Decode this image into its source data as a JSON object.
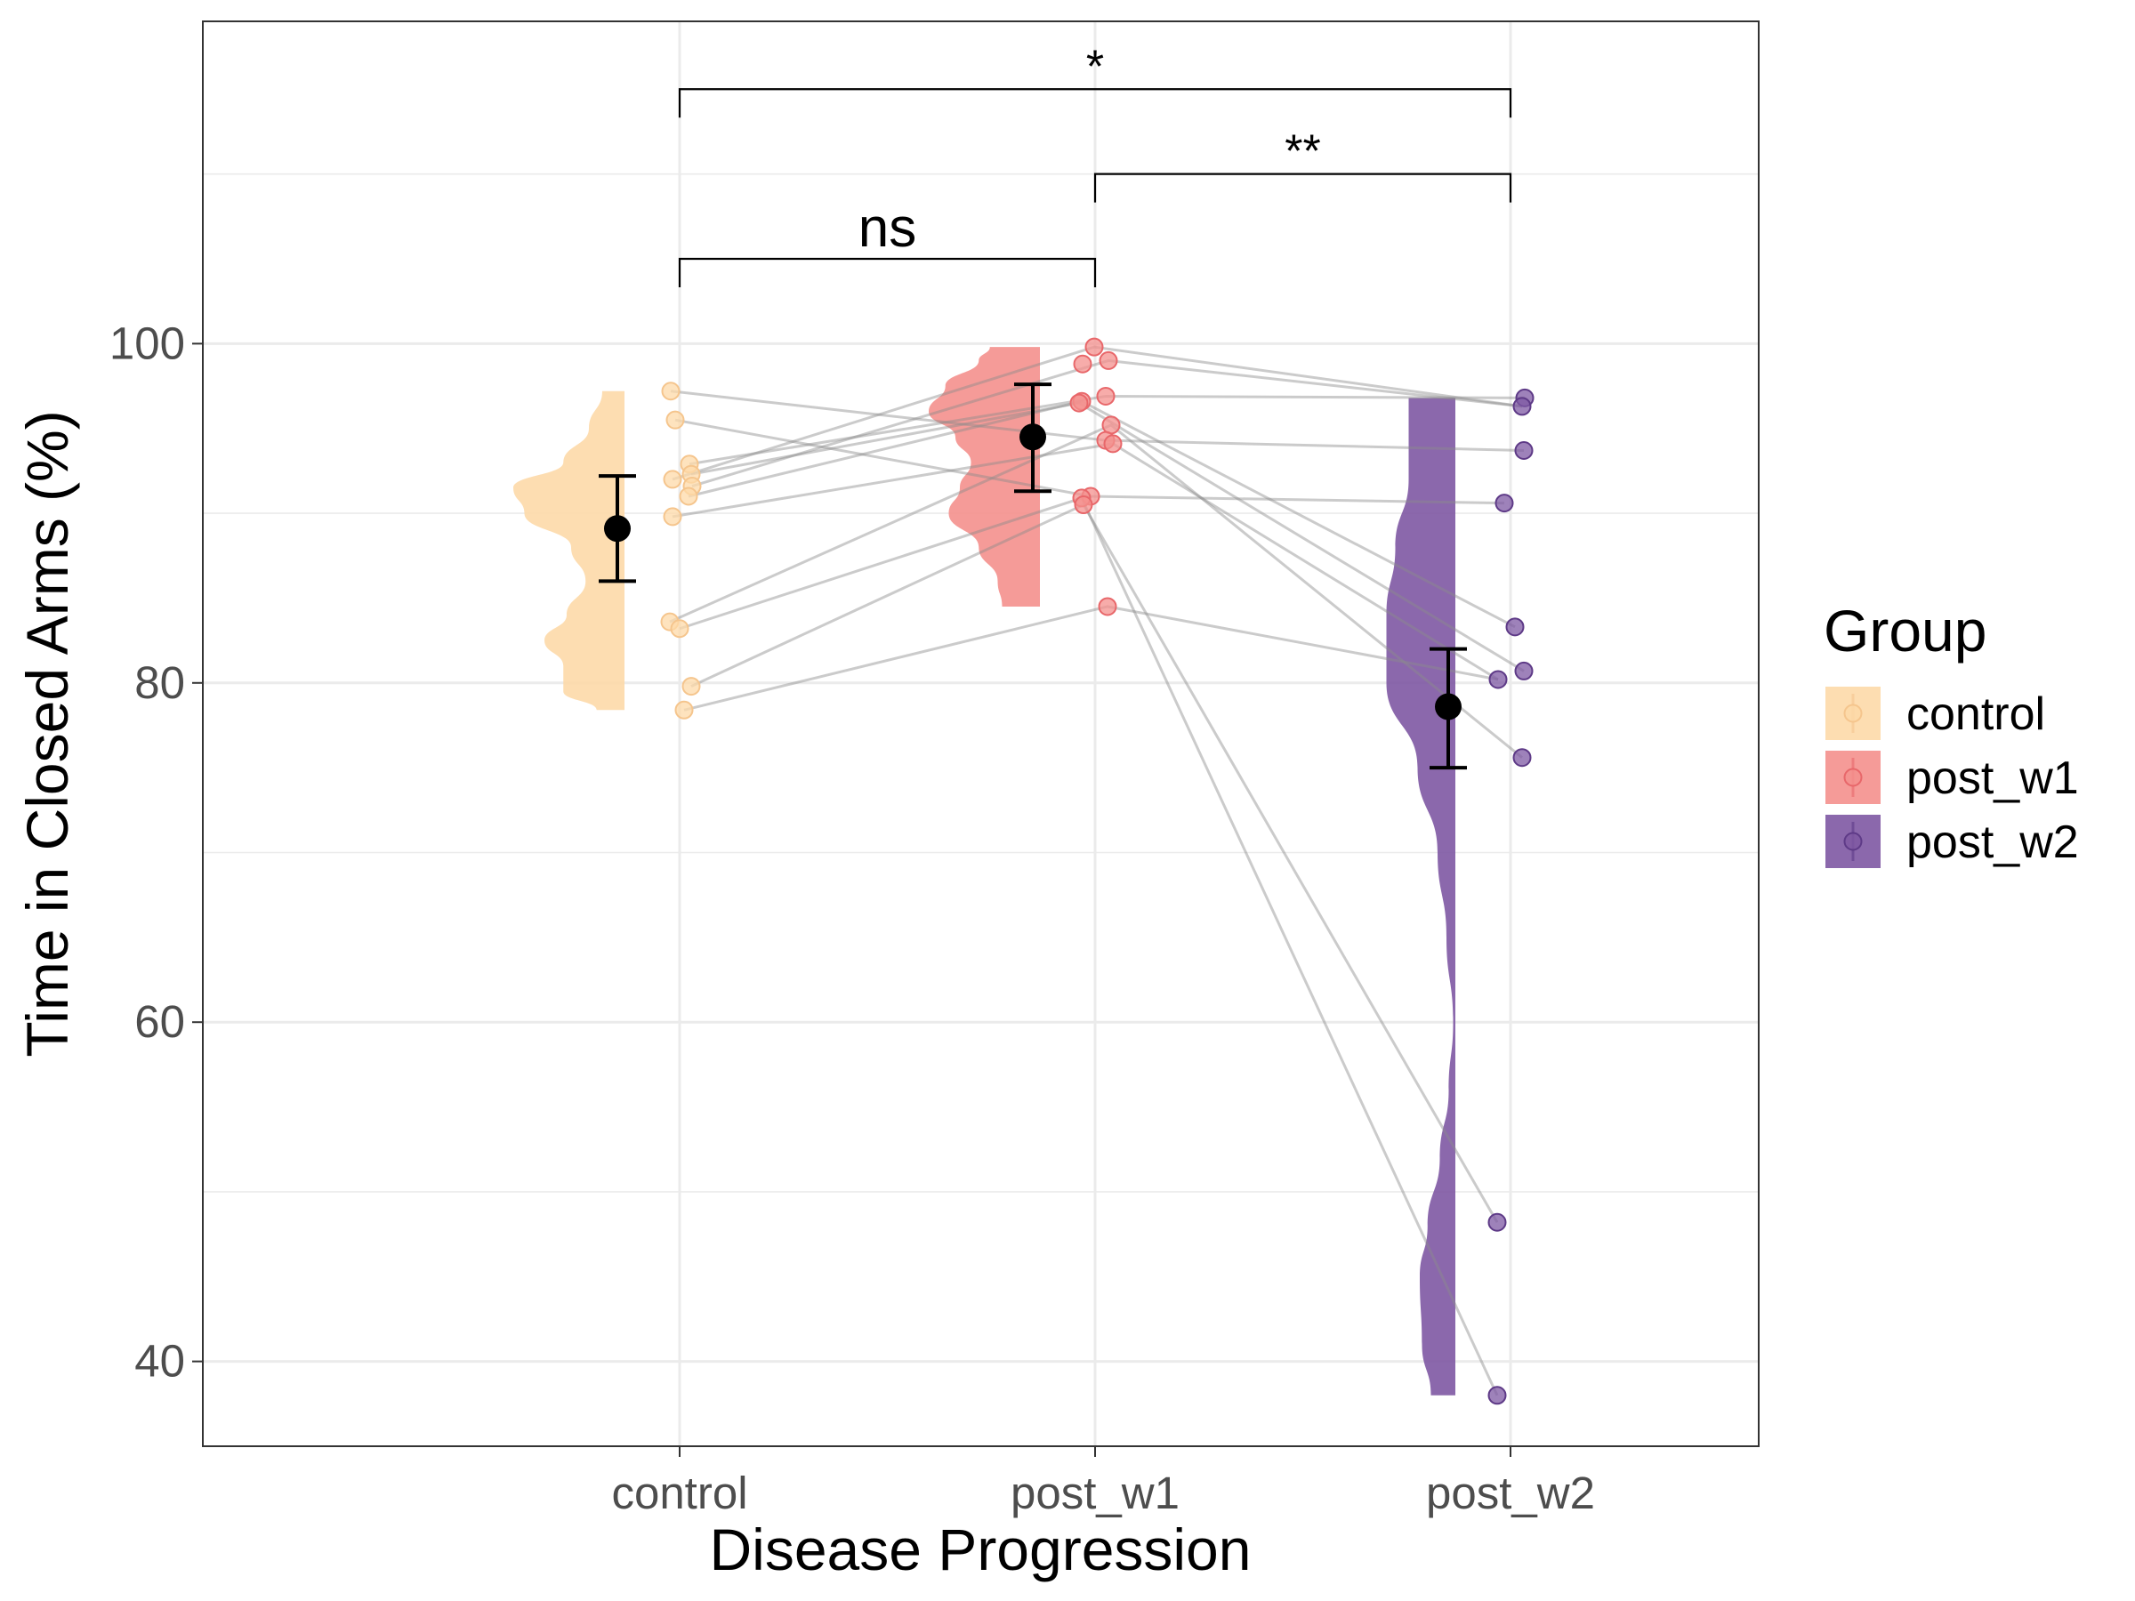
{
  "chart_data": {
    "type": "raincloud",
    "xlabel": "Disease Progression",
    "ylabel": "Time in Closed Arms (%)",
    "categories": [
      "control",
      "post_w1",
      "post_w2"
    ],
    "ylim": [
      35,
      119
    ],
    "yticks": [
      40,
      60,
      80,
      100
    ],
    "grid": true,
    "legend": {
      "title": "Group",
      "position": "right",
      "entries": [
        "control",
        "post_w1",
        "post_w2"
      ]
    },
    "colors": {
      "control": "#fdd9a8",
      "post_w1": "#f4908d",
      "post_w2": "#7e58a3"
    },
    "series": [
      {
        "name": "control",
        "mean": 89.1,
        "error_low": 86.0,
        "error_high": 92.2,
        "points": [
          97.2,
          95.5,
          92.9,
          92.3,
          92.0,
          91.6,
          91.0,
          89.8,
          83.6,
          83.2,
          79.8,
          78.4
        ],
        "density": [
          [
            78.4,
            0.25
          ],
          [
            79.5,
            0.55
          ],
          [
            81,
            0.55
          ],
          [
            82.5,
            0.72
          ],
          [
            84,
            0.52
          ],
          [
            86,
            0.35
          ],
          [
            88,
            0.48
          ],
          [
            90,
            0.9
          ],
          [
            91.5,
            1.0
          ],
          [
            93,
            0.55
          ],
          [
            95,
            0.32
          ],
          [
            97.2,
            0.2
          ]
        ]
      },
      {
        "name": "post_w1",
        "mean": 94.5,
        "error_low": 91.3,
        "error_high": 97.6,
        "points": [
          99.8,
          99.0,
          98.8,
          96.9,
          96.6,
          96.5,
          95.2,
          94.3,
          94.1,
          91.0,
          90.9,
          90.5,
          84.5
        ],
        "density": [
          [
            84.5,
            0.34
          ],
          [
            86,
            0.38
          ],
          [
            88,
            0.55
          ],
          [
            90,
            0.82
          ],
          [
            91.5,
            0.72
          ],
          [
            93,
            0.62
          ],
          [
            94.5,
            0.76
          ],
          [
            96,
            1.0
          ],
          [
            97.5,
            0.85
          ],
          [
            99,
            0.55
          ],
          [
            99.8,
            0.45
          ]
        ]
      },
      {
        "name": "post_w2",
        "mean": 78.6,
        "error_low": 75.0,
        "error_high": 82.0,
        "points": [
          96.8,
          96.3,
          93.7,
          90.6,
          83.3,
          80.7,
          80.2,
          75.6,
          48.2,
          38.0
        ],
        "density": [
          [
            38,
            0.22
          ],
          [
            41,
            0.3
          ],
          [
            45,
            0.32
          ],
          [
            48,
            0.25
          ],
          [
            52,
            0.14
          ],
          [
            56,
            0.06
          ],
          [
            60,
            0.02
          ],
          [
            65,
            0.08
          ],
          [
            70,
            0.16
          ],
          [
            75,
            0.34
          ],
          [
            80,
            0.62
          ],
          [
            84,
            0.62
          ],
          [
            88,
            0.54
          ],
          [
            92,
            0.42
          ],
          [
            96.8,
            0.42
          ]
        ]
      }
    ],
    "paired_lines": [
      [
        97.2,
        94.3,
        93.7
      ],
      [
        95.5,
        91.0,
        90.6
      ],
      [
        92.9,
        96.9,
        96.8
      ],
      [
        92.3,
        96.5,
        80.7
      ],
      [
        92.0,
        99.8,
        96.3
      ],
      [
        91.6,
        99.0,
        96.3
      ],
      [
        91.0,
        96.6,
        83.3
      ],
      [
        89.8,
        94.1,
        80.2
      ],
      [
        83.6,
        95.2,
        75.6
      ],
      [
        83.2,
        90.9,
        38.0
      ],
      [
        79.8,
        90.5,
        48.2
      ],
      [
        78.4,
        84.5,
        80.2
      ]
    ],
    "comparisons": [
      {
        "from": "control",
        "to": "post_w1",
        "label": "ns",
        "y": 105
      },
      {
        "from": "post_w1",
        "to": "post_w2",
        "label": "**",
        "y": 110
      },
      {
        "from": "control",
        "to": "post_w2",
        "label": "*",
        "y": 115
      }
    ]
  }
}
